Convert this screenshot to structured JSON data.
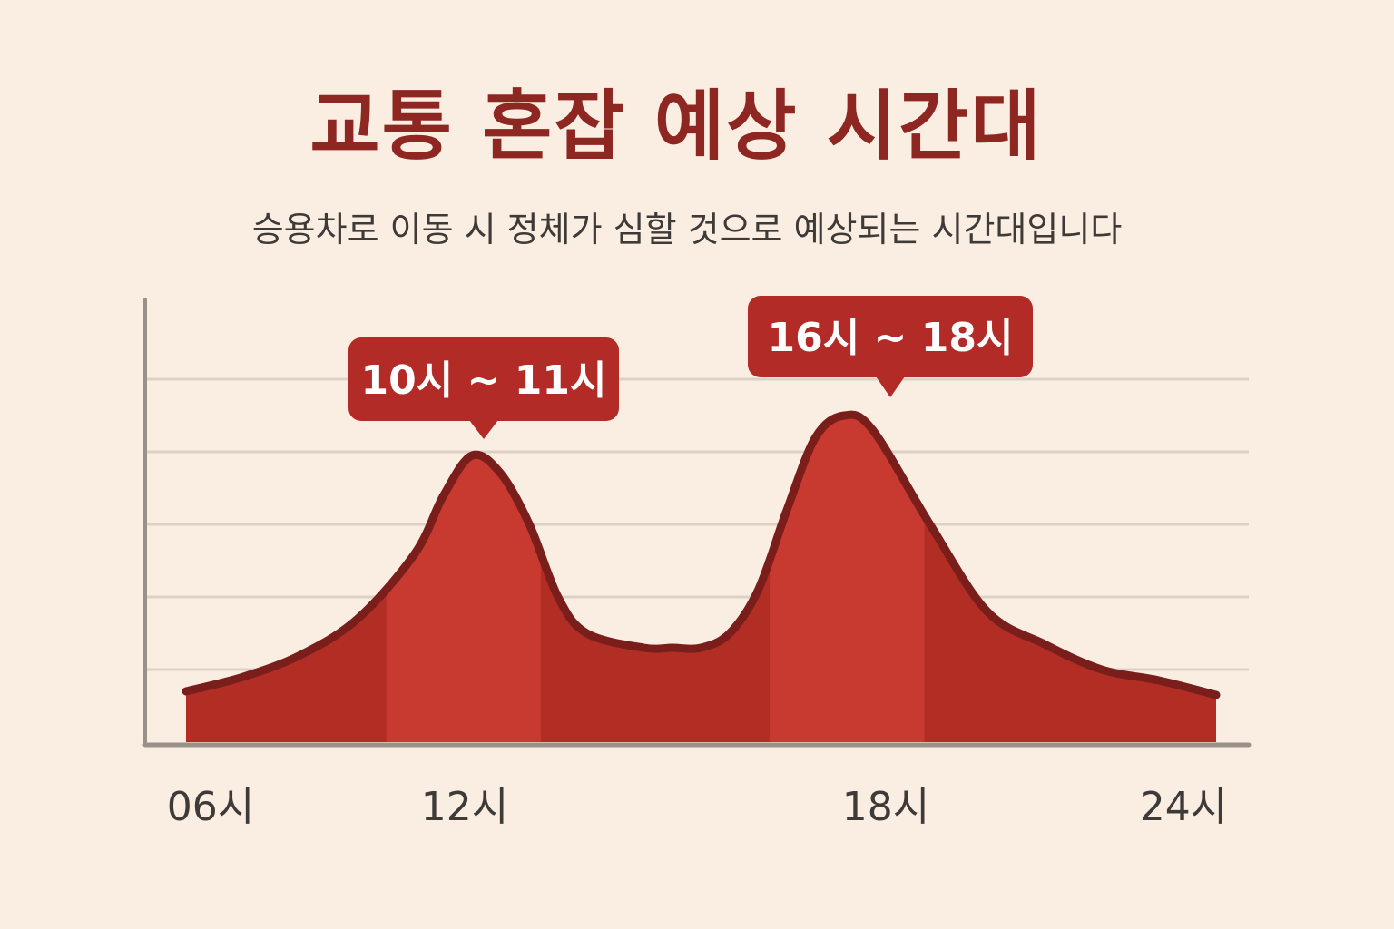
{
  "chart_data": {
    "type": "area",
    "title": "교통 혼잡 예상 시간대",
    "subtitle": "승용차로 이동 시 정체가 심할 것으로 예상되는 시간대입니다",
    "xlabel": "",
    "ylabel": "",
    "x_ticks": [
      {
        "hour": 6,
        "label": "06시"
      },
      {
        "hour": 12,
        "label": "12시"
      },
      {
        "hour": 18,
        "label": "18시"
      },
      {
        "hour": 24,
        "label": "24시"
      }
    ],
    "xlim": [
      6,
      24
    ],
    "ylim": [
      0,
      5
    ],
    "grid": true,
    "series": [
      {
        "x": [
          6,
          7,
          8,
          9,
          10,
          10.5,
          11,
          11.5,
          12,
          12.5,
          13,
          14,
          14.5,
          15,
          15.5,
          16,
          16.5,
          17,
          17.5,
          18,
          19,
          20,
          21,
          22,
          23,
          24
        ],
        "values": [
          0.7,
          0.9,
          1.2,
          1.7,
          2.6,
          3.4,
          3.95,
          3.7,
          3.0,
          2.0,
          1.5,
          1.3,
          1.3,
          1.3,
          1.5,
          2.1,
          3.2,
          4.2,
          4.5,
          4.3,
          3.0,
          1.8,
          1.35,
          1.0,
          0.85,
          0.65
        ]
      }
    ],
    "highlight_ranges": [
      {
        "from": 9.5,
        "to": 12.2,
        "label": "10시 ~ 11시",
        "peak_hour": 11
      },
      {
        "from": 16.2,
        "to": 18.9,
        "label": "16시 ~ 18시",
        "peak_hour": 17.5
      }
    ],
    "colors": {
      "background": "#FAEEE2",
      "area_fill": "#B22E25",
      "highlight_fill": "#C83A2F",
      "outline": "#7A1E1B",
      "callout": "#B32B26",
      "callout_text": "#FFFFFF",
      "grid": "#DDD0C5",
      "axis": "#9A918B",
      "tick_text": "#3E3A38",
      "title": "#8E2622"
    }
  }
}
